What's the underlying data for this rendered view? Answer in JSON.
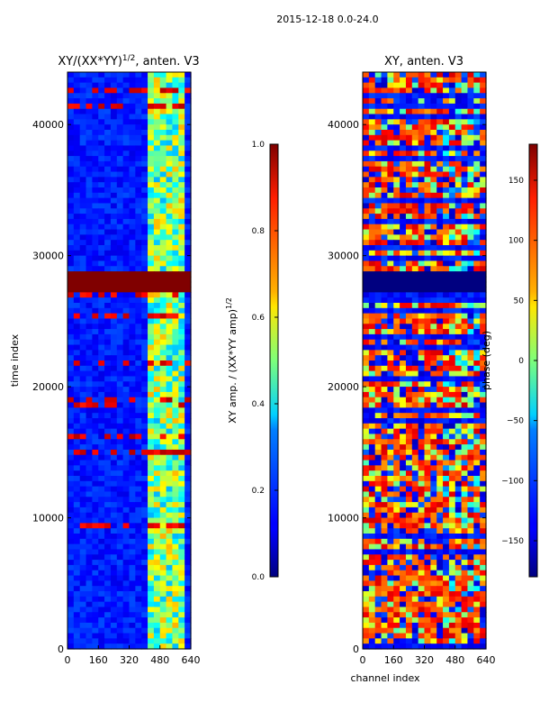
{
  "figure_title": "2015-12-18 0.0-24.0",
  "chart_data": [
    {
      "type": "heatmap",
      "title": "XY/(XX*YY)",
      "title_exponent": "1/2",
      "title_suffix": ", anten. V3",
      "xlabel": "",
      "ylabel": "time index",
      "xlim": [
        0,
        640
      ],
      "ylim": [
        0,
        44000
      ],
      "xticks": [
        0,
        160,
        320,
        480,
        640
      ],
      "yticks": [
        0,
        10000,
        20000,
        30000,
        40000
      ],
      "colormap": "jet",
      "colorbar": {
        "label": "XY amp. / (XX*YY amp)",
        "label_exponent": "1/2",
        "range": [
          0.0,
          1.0
        ],
        "ticks": [
          "0.0",
          "0.2",
          "0.4",
          "0.6",
          "0.8",
          "1.0"
        ]
      },
      "notes": "values mostly ~0.1-0.2 (blue); channels ~410-600 higher (0.3-0.7); saturated band (1.0) near time index 27500-28600"
    },
    {
      "type": "heatmap",
      "title": "XY, anten. V3",
      "xlabel": "channel index",
      "ylabel": "",
      "xlim": [
        0,
        640
      ],
      "ylim": [
        0,
        44000
      ],
      "xticks": [
        0,
        160,
        320,
        480,
        640
      ],
      "yticks": [
        0,
        10000,
        20000,
        30000,
        40000
      ],
      "colormap": "jet",
      "colorbar": {
        "label": "phase (deg)",
        "range": [
          -180,
          180
        ],
        "ticks": [
          "−150",
          "−100",
          "−50",
          "0",
          "50",
          "100",
          "150"
        ]
      },
      "notes": "phase mostly 80-150 deg (orange/red) with blue (-150) regions; band of -180 near time index 27500-28600"
    }
  ]
}
